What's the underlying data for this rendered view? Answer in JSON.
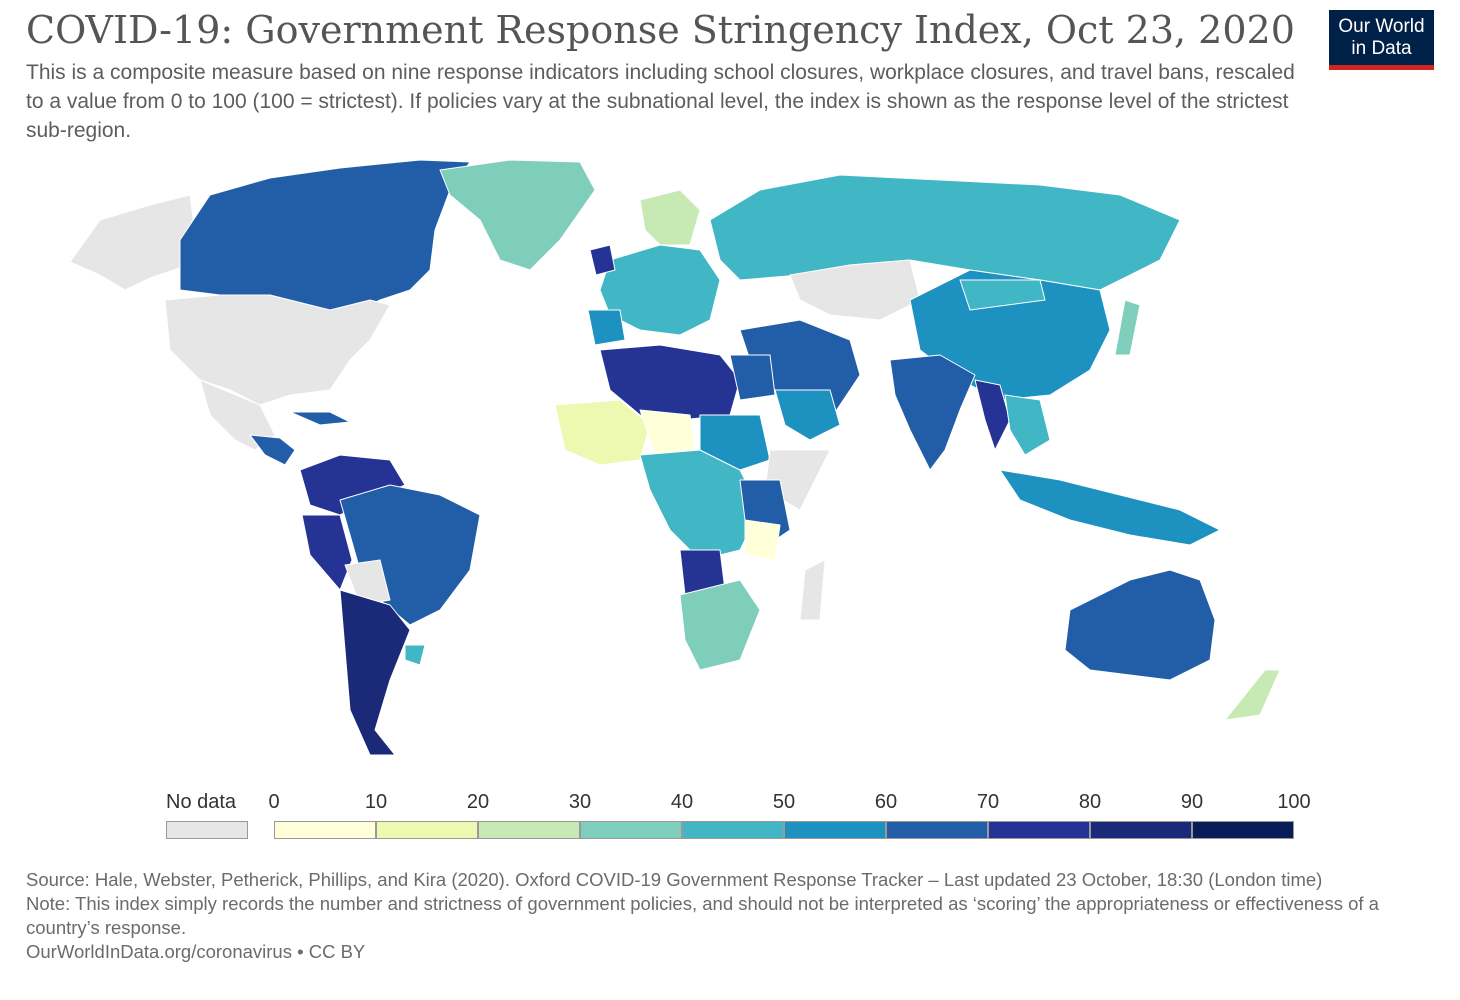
{
  "header": {
    "title": "COVID-19: Government Response Stringency Index, Oct 23, 2020",
    "subtitle": "This is a composite measure based on nine response indicators including school closures, workplace closures, and travel bans, rescaled to a value from 0 to 100 (100 = strictest). If policies vary at the subnational level, the index is shown as the response level of the strictest sub-region."
  },
  "logo": {
    "line1": "Our World",
    "line2": "in Data",
    "bg": "#002147",
    "accent": "#ce261e"
  },
  "legend": {
    "no_data_label": "No data",
    "no_data_color": "#e6e6e6",
    "ticks": [
      "0",
      "10",
      "20",
      "30",
      "40",
      "50",
      "60",
      "70",
      "80",
      "90",
      "100"
    ],
    "colors": [
      "#ffffd9",
      "#edf8b1",
      "#c7e9b4",
      "#7fcdbb",
      "#41b6c4",
      "#1d91c0",
      "#225ea8",
      "#253494",
      "#1a2a78",
      "#081d58"
    ]
  },
  "footer": {
    "source": "Source: Hale, Webster, Petherick, Phillips, and Kira (2020). Oxford COVID-19 Government Response Tracker – Last updated 23 October, 18:30 (London time)",
    "note": "Note: This index simply records the number and strictness of government policies, and should not be interpreted as ‘scoring’ the appropriateness or effectiveness of a country’s response.",
    "link": "OurWorldInData.org/coronavirus • CC BY"
  }
}
